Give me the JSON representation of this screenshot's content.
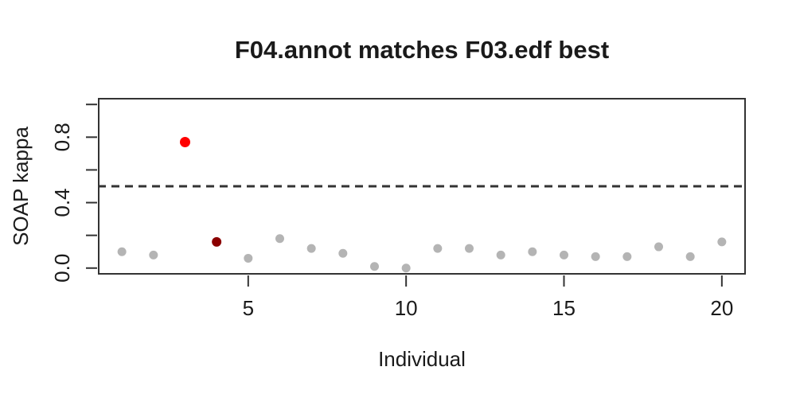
{
  "chart_data": {
    "type": "scatter",
    "title": "F04.annot matches F03.edf best",
    "xlabel": "Individual",
    "ylabel": "SOAP kappa",
    "x_axis": {
      "ticks": [
        5,
        10,
        15,
        20
      ],
      "lim": [
        0.24,
        20.76
      ]
    },
    "y_axis": {
      "ticks": [
        0,
        0.2,
        0.4,
        0.6,
        0.8,
        1
      ],
      "tick_labels": [
        "0.0",
        "",
        "0.4",
        "",
        "0.8",
        ""
      ],
      "lim": [
        -0.04,
        1.04
      ]
    },
    "reference_line": {
      "y": 0.5,
      "style": "dashed",
      "color": "#333333"
    },
    "points": [
      {
        "x": 1,
        "y": 0.1,
        "color": "#b4b4b4",
        "r": 5.5
      },
      {
        "x": 2,
        "y": 0.08,
        "color": "#b4b4b4",
        "r": 5.5
      },
      {
        "x": 3,
        "y": 0.77,
        "color": "#ff0000",
        "r": 6.5
      },
      {
        "x": 4,
        "y": 0.16,
        "color": "#8b0000",
        "r": 6
      },
      {
        "x": 5,
        "y": 0.06,
        "color": "#b4b4b4",
        "r": 5.5
      },
      {
        "x": 6,
        "y": 0.18,
        "color": "#b4b4b4",
        "r": 5.5
      },
      {
        "x": 7,
        "y": 0.12,
        "color": "#b4b4b4",
        "r": 5.5
      },
      {
        "x": 8,
        "y": 0.09,
        "color": "#b4b4b4",
        "r": 5.5
      },
      {
        "x": 9,
        "y": 0.01,
        "color": "#b4b4b4",
        "r": 5.5
      },
      {
        "x": 10,
        "y": 0.0,
        "color": "#b4b4b4",
        "r": 5.5
      },
      {
        "x": 11,
        "y": 0.12,
        "color": "#b4b4b4",
        "r": 5.5
      },
      {
        "x": 12,
        "y": 0.12,
        "color": "#b4b4b4",
        "r": 5.5
      },
      {
        "x": 13,
        "y": 0.08,
        "color": "#b4b4b4",
        "r": 5.5
      },
      {
        "x": 14,
        "y": 0.1,
        "color": "#b4b4b4",
        "r": 5.5
      },
      {
        "x": 15,
        "y": 0.08,
        "color": "#b4b4b4",
        "r": 5.5
      },
      {
        "x": 16,
        "y": 0.07,
        "color": "#b4b4b4",
        "r": 5.5
      },
      {
        "x": 17,
        "y": 0.07,
        "color": "#b4b4b4",
        "r": 5.5
      },
      {
        "x": 18,
        "y": 0.13,
        "color": "#b4b4b4",
        "r": 5.5
      },
      {
        "x": 19,
        "y": 0.07,
        "color": "#b4b4b4",
        "r": 5.5
      },
      {
        "x": 20,
        "y": 0.16,
        "color": "#b4b4b4",
        "r": 5.5
      }
    ],
    "style": {
      "frame_color": "#333333",
      "text_color": "#1a1a1a",
      "grid": false,
      "legend": null
    }
  }
}
